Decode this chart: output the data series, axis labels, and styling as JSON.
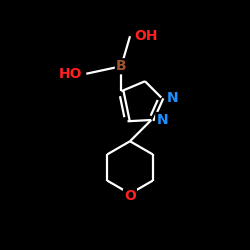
{
  "background_color": "#000000",
  "bond_color": "#ffffff",
  "atom_colors": {
    "B": "#A0522D",
    "N": "#1E90FF",
    "O": "#FF2020",
    "C": "#ffffff"
  },
  "fig_width": 2.5,
  "fig_height": 2.5,
  "dpi": 100
}
